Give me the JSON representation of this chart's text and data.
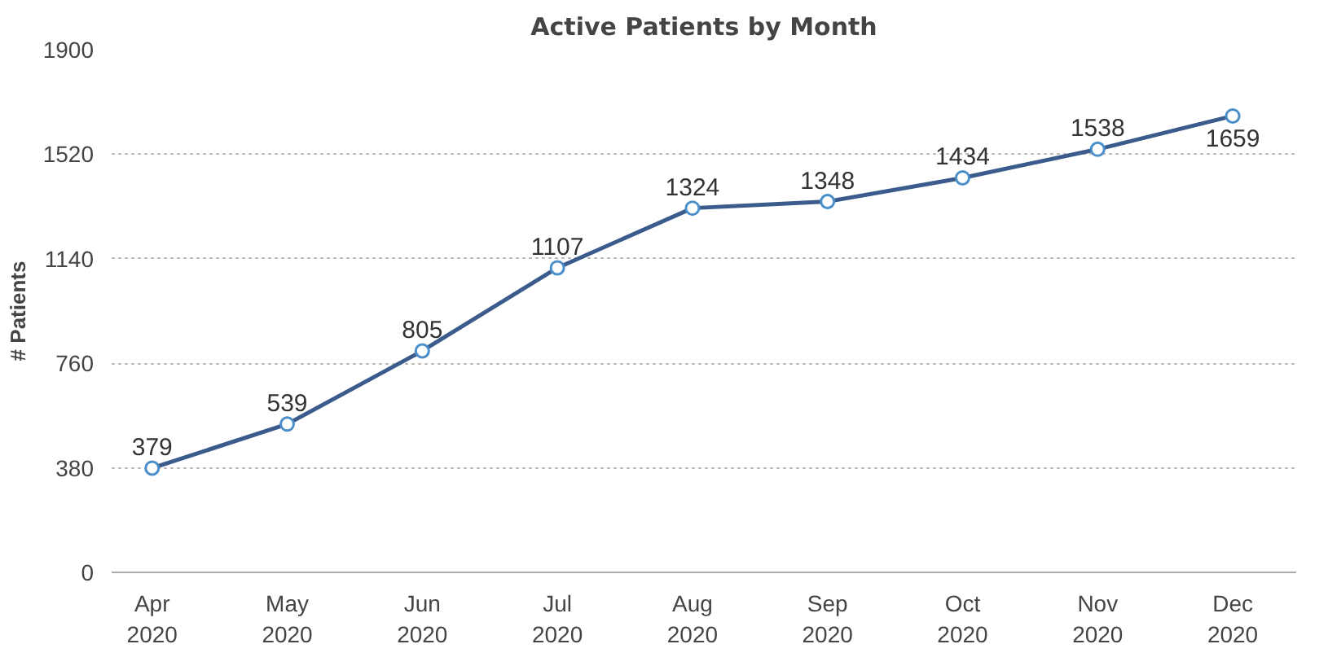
{
  "chart_data": {
    "type": "line",
    "title": "Active Patients by Month",
    "ylabel": "# Patients",
    "categories": [
      "Apr\n2020",
      "May\n2020",
      "Jun\n2020",
      "Jul\n2020",
      "Aug\n2020",
      "Sep\n2020",
      "Oct\n2020",
      "Nov\n2020",
      "Dec\n2020"
    ],
    "series": [
      {
        "color": "#3b5b8c",
        "values": [
          379,
          539,
          805,
          1107,
          1324,
          1348,
          1434,
          1538,
          1659
        ]
      }
    ],
    "ylim": [
      0,
      1900
    ],
    "yticks": [
      0,
      380,
      760,
      1140,
      1520,
      1900
    ],
    "grid": "y",
    "marker": "circle",
    "line_style": "solid",
    "data_labels": true
  }
}
